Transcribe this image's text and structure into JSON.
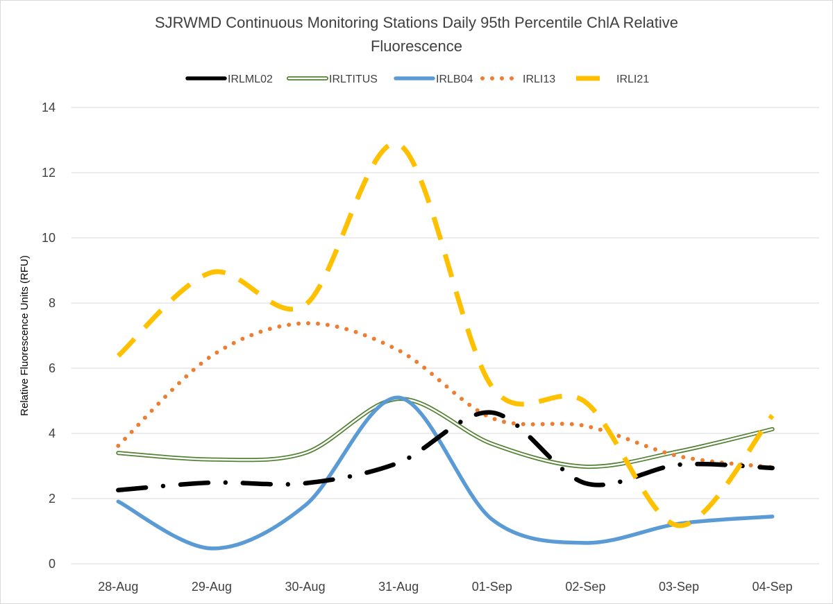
{
  "chart_data": {
    "type": "line",
    "title_lines": [
      "SJRWMD Continuous Monitoring Stations Daily 95th Percentile ChlA Relative",
      "Fluorescence"
    ],
    "xlabel": "",
    "ylabel": "Relative Fluorescence Units (RFU)",
    "ylim": [
      0,
      14
    ],
    "yticks": [
      0,
      2,
      4,
      6,
      8,
      10,
      12,
      14
    ],
    "grid": true,
    "legend_position": "top",
    "categories": [
      "28-Aug",
      "29-Aug",
      "30-Aug",
      "31-Aug",
      "01-Sep",
      "02-Sep",
      "03-Sep",
      "04-Sep"
    ],
    "series": [
      {
        "name": "IRLML02",
        "color": "#000000",
        "style": "dash-dot",
        "values": [
          2.26,
          2.49,
          2.47,
          3.1,
          4.64,
          2.47,
          3.04,
          2.94
        ]
      },
      {
        "name": "IRLTITUS",
        "color": "#548235",
        "style": "double",
        "values": [
          3.4,
          3.2,
          3.4,
          5.06,
          3.68,
          2.98,
          3.45,
          4.13
        ]
      },
      {
        "name": "IRLB04",
        "color": "#5b9bd5",
        "style": "solid",
        "values": [
          1.91,
          0.47,
          1.79,
          5.1,
          1.36,
          0.64,
          1.23,
          1.45
        ]
      },
      {
        "name": "IRLI13",
        "color": "#ed7d31",
        "style": "dotted",
        "values": [
          3.62,
          6.38,
          7.38,
          6.55,
          4.47,
          4.23,
          3.3,
          2.96
        ]
      },
      {
        "name": "IRLI21",
        "color": "#ffc000",
        "style": "dashed",
        "values": [
          6.38,
          8.94,
          7.94,
          12.87,
          5.43,
          4.96,
          1.17,
          4.55
        ]
      }
    ]
  }
}
